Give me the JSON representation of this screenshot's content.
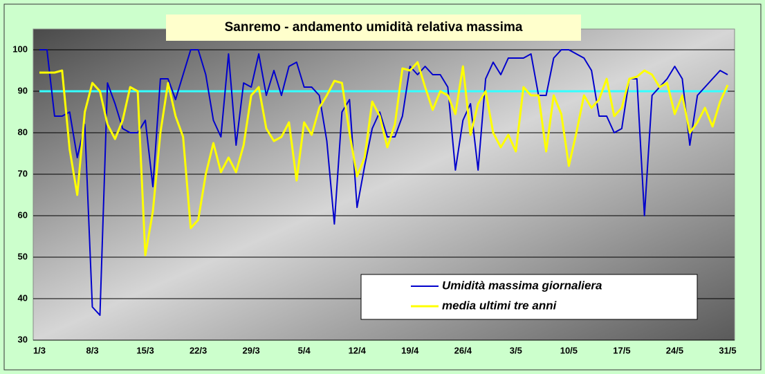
{
  "chart_data": {
    "type": "line",
    "title": "Sanremo - andamento umidità relativa massima",
    "categories": [
      "1/3",
      null,
      null,
      null,
      null,
      null,
      null,
      "8/3",
      null,
      null,
      null,
      null,
      null,
      null,
      "15/3",
      null,
      null,
      null,
      null,
      null,
      null,
      "22/3",
      null,
      null,
      null,
      null,
      null,
      null,
      "29/3",
      null,
      null,
      null,
      null,
      null,
      null,
      "5/4",
      null,
      null,
      null,
      null,
      null,
      null,
      "12/4",
      null,
      null,
      null,
      null,
      null,
      null,
      "19/4",
      null,
      null,
      null,
      null,
      null,
      null,
      "26/4",
      null,
      null,
      null,
      null,
      null,
      null,
      "3/5",
      null,
      null,
      null,
      null,
      null,
      null,
      "10/5",
      null,
      null,
      null,
      null,
      null,
      null,
      "17/5",
      null,
      null,
      null,
      null,
      null,
      null,
      "24/5",
      null,
      null,
      null,
      null,
      null,
      null,
      "31/5"
    ],
    "series": [
      {
        "name": "Umidità massima giornaliera",
        "color": "#0000cc",
        "values": [
          100,
          100,
          84,
          84,
          85,
          74,
          82,
          38,
          36,
          92,
          87,
          81,
          80,
          80,
          83,
          67,
          93,
          93,
          88,
          94,
          100,
          100,
          94,
          83,
          79,
          99,
          77,
          92,
          91,
          99,
          89,
          95,
          89,
          96,
          97,
          91,
          91,
          89,
          78,
          58,
          85,
          88,
          62,
          72,
          81,
          85,
          79,
          79,
          84,
          96,
          94,
          96,
          94,
          94,
          91,
          71,
          83,
          87,
          71,
          93,
          97,
          94,
          98,
          98,
          98,
          99,
          89,
          89,
          98,
          100,
          100,
          99,
          98,
          95,
          84,
          84,
          80,
          81,
          93,
          93,
          60,
          89,
          91,
          93,
          96,
          93,
          77,
          89,
          91,
          93,
          95,
          94
        ]
      },
      {
        "name": "media ultimi tre anni",
        "color": "#ffff00",
        "values": [
          94.5,
          94.5,
          94.5,
          95,
          76,
          65,
          85,
          92,
          90,
          82,
          78.5,
          83,
          91,
          90,
          50.5,
          61,
          80,
          92,
          84,
          79,
          57,
          59,
          70,
          77.5,
          70.5,
          74,
          70.5,
          77,
          89,
          91,
          81,
          78,
          79,
          82.5,
          68.5,
          82.5,
          79.5,
          86,
          89,
          92.5,
          92,
          80,
          69.5,
          74,
          87.5,
          84,
          76.5,
          82,
          95.5,
          95,
          97,
          91,
          85.5,
          90,
          89,
          84.5,
          96,
          79.5,
          87,
          90,
          80,
          76.5,
          79.5,
          75.5,
          91,
          89,
          89,
          75.5,
          89,
          84.5,
          72,
          80,
          89,
          86,
          88,
          93,
          84,
          86,
          93,
          93.5,
          95,
          94,
          91,
          92,
          84.5,
          89,
          80,
          82.5,
          86,
          81.5,
          87.5,
          91.5
        ]
      }
    ],
    "reference_line": {
      "value": 90,
      "color": "#33ffff"
    },
    "ylim": [
      30,
      105
    ],
    "yticks": [
      30,
      40,
      50,
      60,
      70,
      80,
      90,
      100
    ],
    "grid": true,
    "legend": "lower right"
  }
}
